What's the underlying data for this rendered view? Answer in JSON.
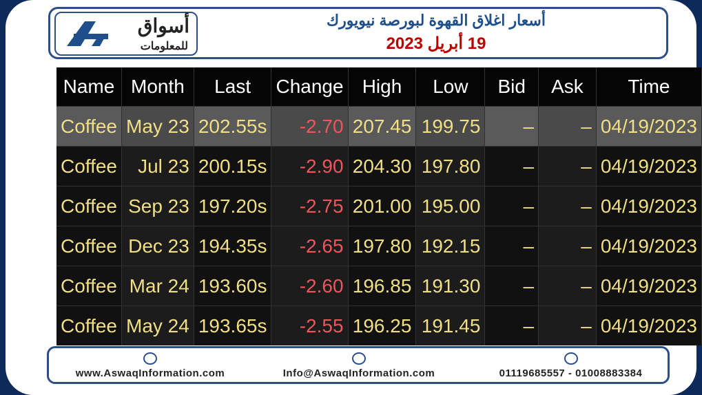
{
  "header": {
    "logo_name": "أسواق",
    "logo_sub": "للمعلومات",
    "title": "أسعار اغلاق القهوة لبورصة نيويورك",
    "date": "19 أبريل 2023"
  },
  "table": {
    "columns": [
      "Name",
      "Month",
      "Last",
      "Change",
      "High",
      "Low",
      "Bid",
      "Ask",
      "Time"
    ],
    "rows": [
      [
        "Coffee",
        "May 23",
        "202.55s",
        "-2.70",
        "207.45",
        "199.75",
        "–",
        "–",
        "04/19/2023"
      ],
      [
        "Coffee",
        "Jul 23",
        "200.15s",
        "-2.90",
        "204.30",
        "197.80",
        "–",
        "–",
        "04/19/2023"
      ],
      [
        "Coffee",
        "Sep 23",
        "197.20s",
        "-2.75",
        "201.00",
        "195.00",
        "–",
        "–",
        "04/19/2023"
      ],
      [
        "Coffee",
        "Dec 23",
        "194.35s",
        "-2.65",
        "197.80",
        "192.15",
        "–",
        "–",
        "04/19/2023"
      ],
      [
        "Coffee",
        "Mar 24",
        "193.60s",
        "-2.60",
        "196.85",
        "191.30",
        "–",
        "–",
        "04/19/2023"
      ],
      [
        "Coffee",
        "May 24",
        "193.65s",
        "-2.55",
        "196.25",
        "191.45",
        "–",
        "–",
        "04/19/2023"
      ]
    ]
  },
  "footer": {
    "website": "www.AswaqInformation.com",
    "email": "Info@AswaqInformation.com",
    "phone": "01119685557 - 01008883384"
  }
}
